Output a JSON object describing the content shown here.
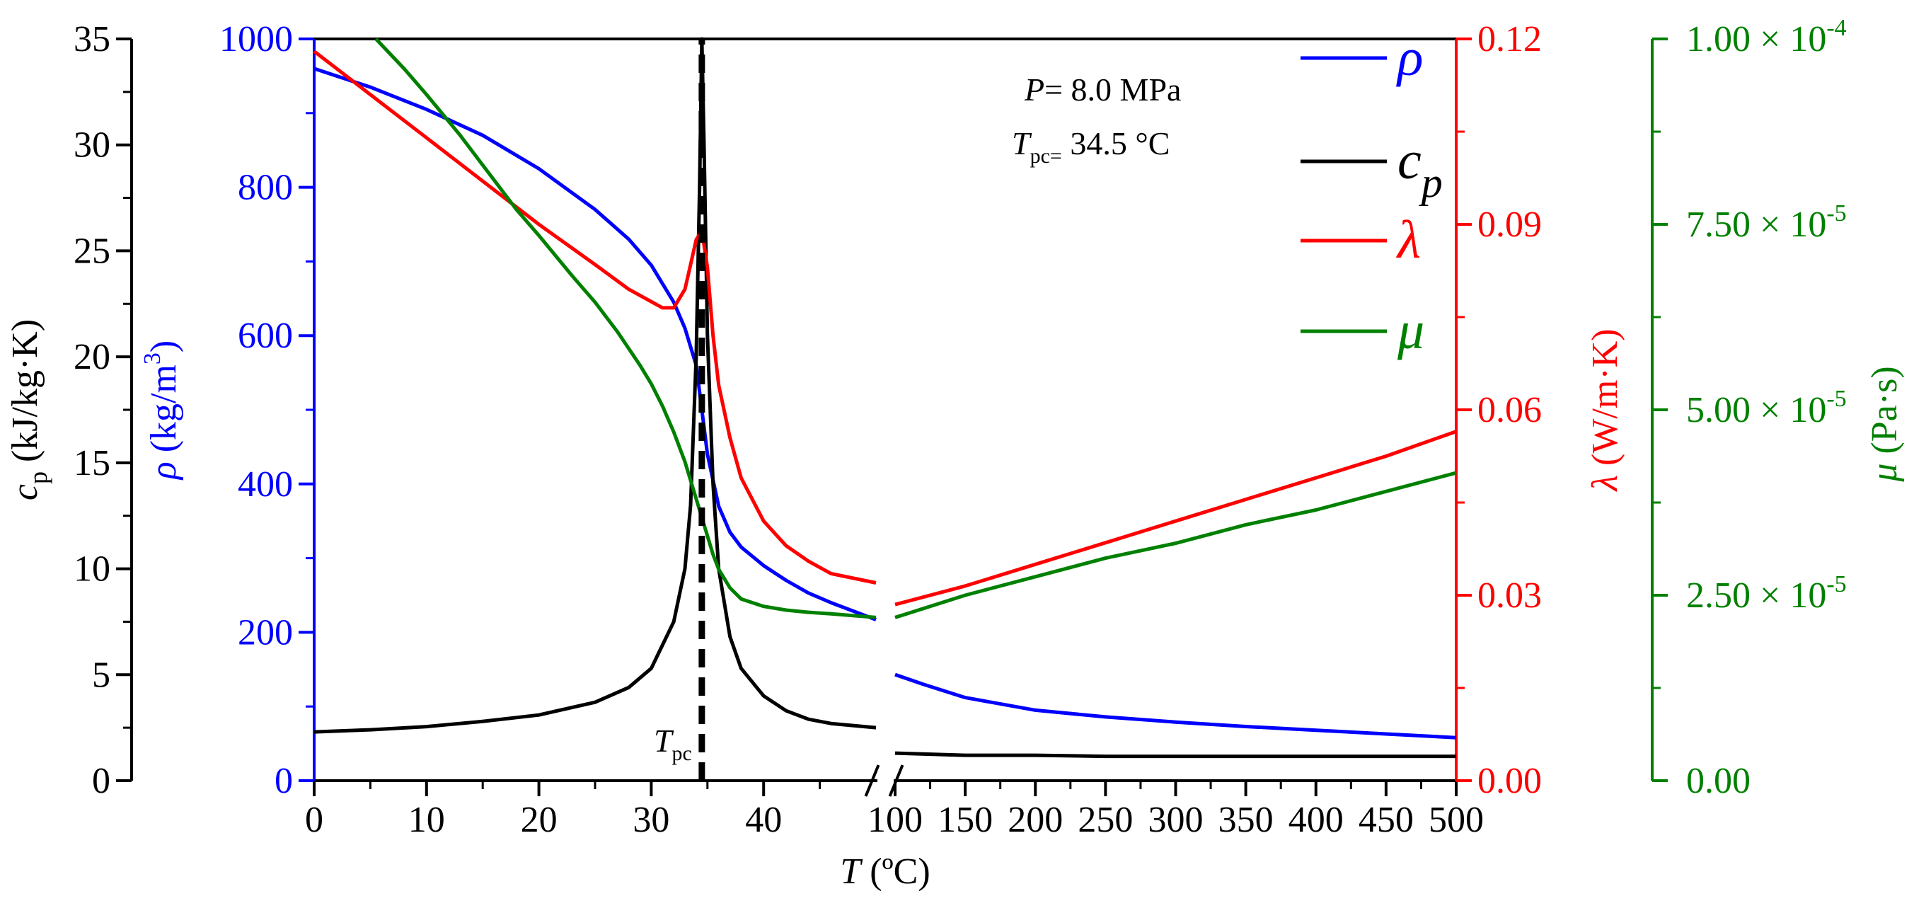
{
  "chart_data": {
    "type": "line",
    "title": "",
    "x_axis": {
      "symbol": "T",
      "unit": "(ºC)",
      "segments": [
        {
          "range": [
            0,
            50
          ],
          "ticks": [
            0,
            10,
            20,
            30,
            40
          ]
        },
        {
          "range": [
            100,
            500
          ],
          "ticks": [
            100,
            150,
            200,
            250,
            300,
            350,
            400,
            450,
            500
          ]
        }
      ],
      "break_marker": "//"
    },
    "axes": {
      "cp": {
        "symbol": "c",
        "sub": "p",
        "unit": "(kJ/kg·K)",
        "range": [
          0,
          35
        ],
        "ticks": [
          "0",
          "5",
          "10",
          "15",
          "20",
          "25",
          "30",
          "35"
        ],
        "color": "#000000"
      },
      "rho": {
        "symbol": "ρ",
        "unit": "(kg/m",
        "unit_sup": "3",
        "unit_end": ")",
        "range": [
          0,
          1000
        ],
        "ticks": [
          "0",
          "200",
          "400",
          "600",
          "800",
          "1000"
        ],
        "color": "#0000ff"
      },
      "lambda": {
        "symbol": "λ",
        "unit": "(W/m·K)",
        "range": [
          0,
          0.12
        ],
        "ticks": [
          "0.00",
          "0.03",
          "0.06",
          "0.09",
          "0.12"
        ],
        "color": "#ff0000"
      },
      "mu": {
        "symbol": "μ",
        "unit": "(Pa·s)",
        "range": [
          0,
          0.0001
        ],
        "ticks": [
          {
            "mant": "0.00",
            "exp": ""
          },
          {
            "mant": "2.50 × 10",
            "exp": "-5"
          },
          {
            "mant": "5.00 × 10",
            "exp": "-5"
          },
          {
            "mant": "7.50 × 10",
            "exp": "-5"
          },
          {
            "mant": "1.00 × 10",
            "exp": "-4"
          }
        ],
        "color": "#008000"
      }
    },
    "series": [
      {
        "name": "rho",
        "label": "ρ",
        "axis": "rho",
        "color": "#0000ff",
        "x": [
          0,
          5,
          10,
          15,
          20,
          25,
          28,
          30,
          32,
          33,
          34,
          34.5,
          35,
          36,
          37,
          38,
          40,
          42,
          44,
          46,
          50,
          100,
          120,
          150,
          200,
          250,
          300,
          350,
          400,
          450,
          500
        ],
        "y": [
          960,
          935,
          905,
          870,
          825,
          770,
          730,
          695,
          645,
          610,
          560,
          500,
          440,
          370,
          335,
          315,
          290,
          270,
          253,
          240,
          217,
          143,
          130,
          112,
          95,
          86,
          79,
          73,
          68,
          63,
          58
        ]
      },
      {
        "name": "cp",
        "label": "c_p",
        "axis": "cp",
        "color": "#000000",
        "x": [
          0,
          5,
          10,
          15,
          20,
          25,
          28,
          30,
          32,
          33,
          33.5,
          34,
          34.3,
          34.5,
          34.7,
          35,
          35.5,
          36,
          37,
          38,
          40,
          42,
          44,
          46,
          50,
          100,
          150,
          200,
          250,
          300,
          350,
          400,
          450,
          500
        ],
        "y": [
          2.3,
          2.4,
          2.55,
          2.8,
          3.1,
          3.7,
          4.4,
          5.3,
          7.5,
          10,
          13,
          20,
          28,
          35,
          30,
          21,
          14,
          10,
          6.8,
          5.3,
          4.0,
          3.3,
          2.9,
          2.7,
          2.5,
          1.3,
          1.2,
          1.2,
          1.15,
          1.15,
          1.15,
          1.15,
          1.15,
          1.15
        ]
      },
      {
        "name": "lambda",
        "label": "λ",
        "axis": "lambda",
        "color": "#ff0000",
        "x": [
          0,
          5,
          10,
          15,
          20,
          25,
          28,
          30,
          31,
          32,
          33,
          33.5,
          34,
          34.5,
          35,
          35.5,
          36,
          37,
          38,
          40,
          42,
          44,
          46,
          50,
          100,
          150,
          200,
          250,
          300,
          350,
          400,
          450,
          500
        ],
        "y": [
          0.118,
          0.111,
          0.104,
          0.097,
          0.09,
          0.0835,
          0.0795,
          0.0775,
          0.0765,
          0.0765,
          0.0795,
          0.0835,
          0.0875,
          0.089,
          0.083,
          0.072,
          0.064,
          0.0555,
          0.049,
          0.042,
          0.038,
          0.0355,
          0.0335,
          0.032,
          0.0285,
          0.0315,
          0.035,
          0.0385,
          0.042,
          0.0455,
          0.049,
          0.0525,
          0.0565
        ]
      },
      {
        "name": "mu",
        "label": "μ",
        "axis": "mu",
        "color": "#008000",
        "x": [
          5.5,
          8,
          10,
          13,
          15,
          18,
          20,
          23,
          25,
          27,
          29,
          30,
          31,
          32,
          33,
          34,
          35,
          35.5,
          36,
          37,
          38,
          40,
          42,
          44,
          46,
          50,
          100,
          150,
          200,
          250,
          300,
          350,
          400,
          450,
          500
        ],
        "y": [
          0.0001,
          9.6e-05,
          9.25e-05,
          8.7e-05,
          8.3e-05,
          7.7e-05,
          7.35e-05,
          6.8e-05,
          6.45e-05,
          6.05e-05,
          5.6e-05,
          5.35e-05,
          5.05e-05,
          4.7e-05,
          4.3e-05,
          3.8e-05,
          3.3e-05,
          3.05e-05,
          2.85e-05,
          2.6e-05,
          2.45e-05,
          2.35e-05,
          2.3e-05,
          2.27e-05,
          2.25e-05,
          2.2e-05,
          2.2e-05,
          2.5e-05,
          2.75e-05,
          3e-05,
          3.2e-05,
          3.45e-05,
          3.65e-05,
          3.9e-05,
          4.15e-05
        ]
      }
    ],
    "vertical_line": {
      "x": 34.5,
      "style": "dashed",
      "label": "T",
      "label_sub": "pc"
    },
    "annotations": {
      "pressure": {
        "sym": "P",
        "text": "= 8.0 MPa"
      },
      "tpc": {
        "sym": "T",
        "sub": "pc=",
        "text": "34.5 °C"
      }
    },
    "legend": {
      "position": "top-right",
      "entries": [
        {
          "series": "rho",
          "sym": "ρ",
          "sub": ""
        },
        {
          "series": "cp",
          "sym": "c",
          "sub": "p"
        },
        {
          "series": "lambda",
          "sym": "λ",
          "sub": ""
        },
        {
          "series": "mu",
          "sym": "μ",
          "sub": ""
        }
      ]
    }
  }
}
